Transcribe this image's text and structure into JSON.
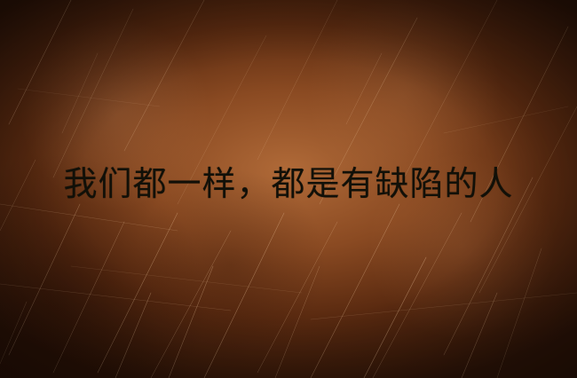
{
  "image": {
    "caption": "我们都一样，都是有缺陷的人",
    "colors": {
      "background_center": "#b06a38",
      "background_edge": "#2e1407",
      "text": "#111008",
      "scratch": "#f0c9a0"
    }
  }
}
